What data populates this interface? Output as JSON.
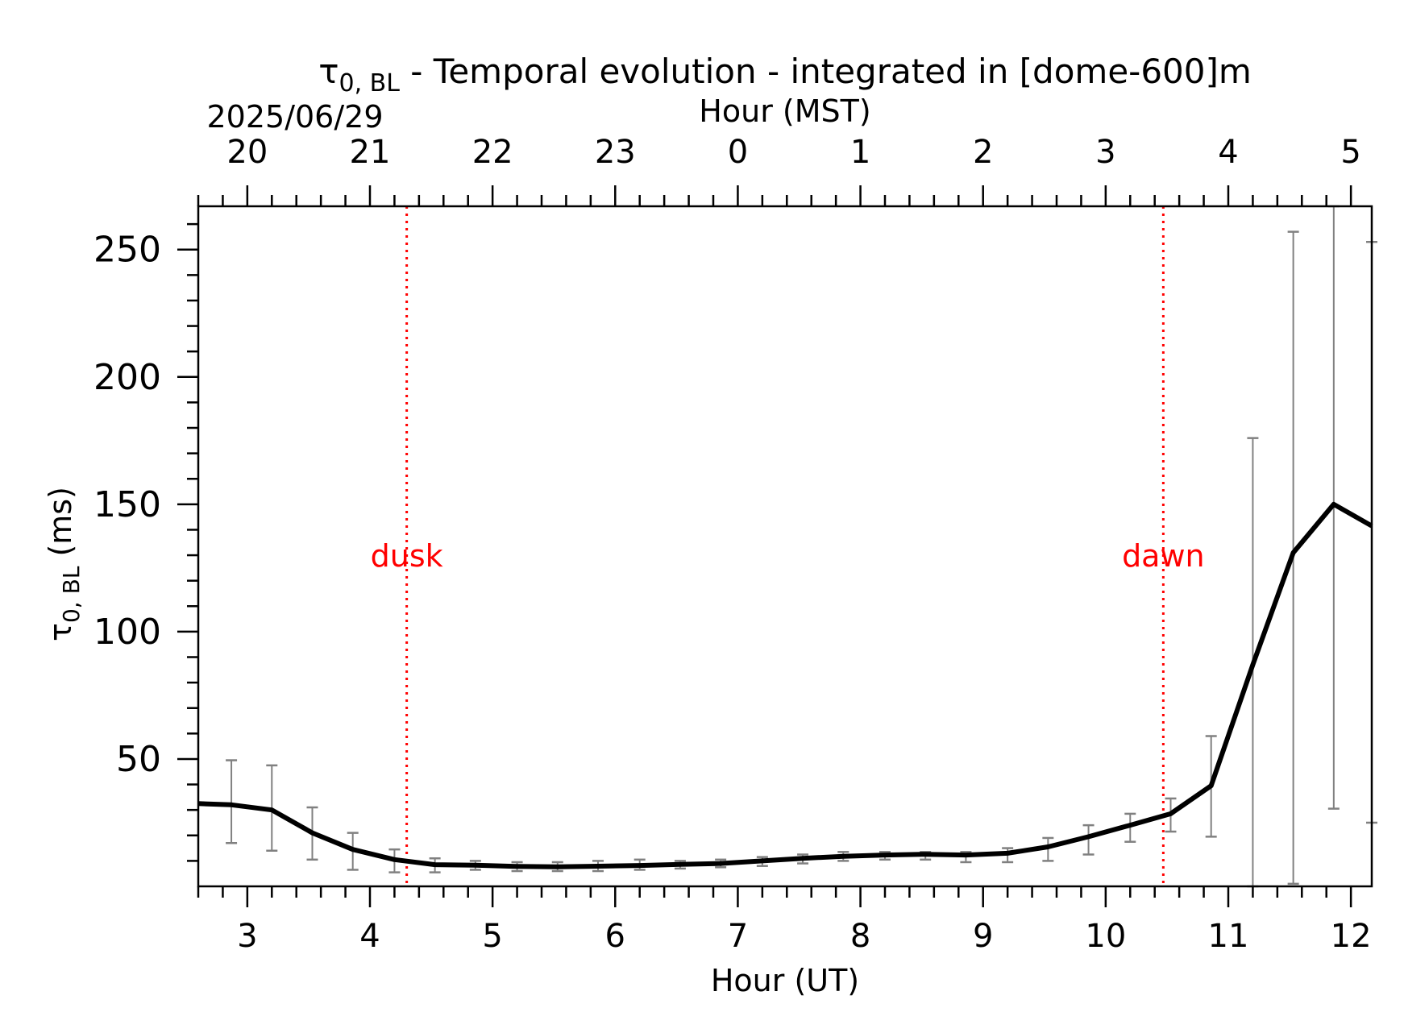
{
  "chart_data": {
    "type": "line",
    "title": {
      "main": "τ",
      "sub": "0, BL",
      "rest": " - Temporal evolution - integrated in [dome-600]m"
    },
    "xlabel": "Hour (UT)",
    "x2label": "Hour (MST)",
    "x2date": "2025/06/29",
    "ylabel": {
      "main": "τ",
      "sub": "0, BL",
      "rest": " (ms)"
    },
    "xlim": [
      2.6,
      12.17
    ],
    "ylim": [
      0,
      267
    ],
    "x_ticks": [
      "3",
      "4",
      "5",
      "6",
      "7",
      "8",
      "9",
      "10",
      "11",
      "12"
    ],
    "x2_ticks": [
      "20",
      "21",
      "22",
      "23",
      "0",
      "1",
      "2",
      "3",
      "4",
      "5"
    ],
    "y_ticks": [
      "50",
      "100",
      "150",
      "200",
      "250"
    ],
    "series": [
      {
        "x": [
          2.6,
          2.87,
          3.2,
          3.53,
          3.86,
          4.2,
          4.53,
          4.86,
          5.2,
          5.53,
          5.86,
          6.2,
          6.53,
          6.86,
          7.2,
          7.53,
          7.86,
          8.2,
          8.53,
          8.86,
          9.2,
          9.53,
          9.86,
          10.2,
          10.53,
          10.86,
          11.2,
          11.53,
          11.86,
          12.17
        ],
        "y": [
          32.5,
          32,
          30,
          21,
          14.5,
          10.5,
          8.5,
          8.3,
          7.8,
          7.7,
          7.9,
          8.2,
          8.6,
          9,
          10,
          11,
          11.8,
          12.3,
          12.6,
          12.3,
          13,
          15.5,
          19.5,
          24,
          28.5,
          39.5,
          87,
          131,
          150,
          141.5
        ],
        "err_low": [
          null,
          17,
          14,
          10.5,
          6.5,
          5.5,
          5.5,
          6.5,
          6,
          6,
          6,
          6.5,
          7,
          7.5,
          8,
          9,
          10,
          10.5,
          10.5,
          9.5,
          9.5,
          10,
          12.5,
          17.5,
          21.5,
          19.5,
          0,
          1,
          30.5,
          25
        ],
        "err_high": [
          null,
          49.5,
          47.5,
          31,
          21,
          14.5,
          11,
          10,
          9.5,
          9.5,
          10,
          10.5,
          10,
          10.5,
          11.5,
          12.5,
          13.5,
          13.5,
          13.5,
          13.5,
          15,
          19,
          24,
          28.5,
          34.5,
          59,
          176,
          257,
          267,
          253
        ]
      }
    ],
    "vlines": [
      {
        "x": 4.3,
        "label": "dusk",
        "color": "#ff0000"
      },
      {
        "x": 10.47,
        "label": "dawn",
        "color": "#ff0000"
      }
    ],
    "annotation_y": 130,
    "colors": {
      "line": "#000000",
      "errorbar": "#808080",
      "marker": "#ff0000"
    },
    "grid": false
  }
}
